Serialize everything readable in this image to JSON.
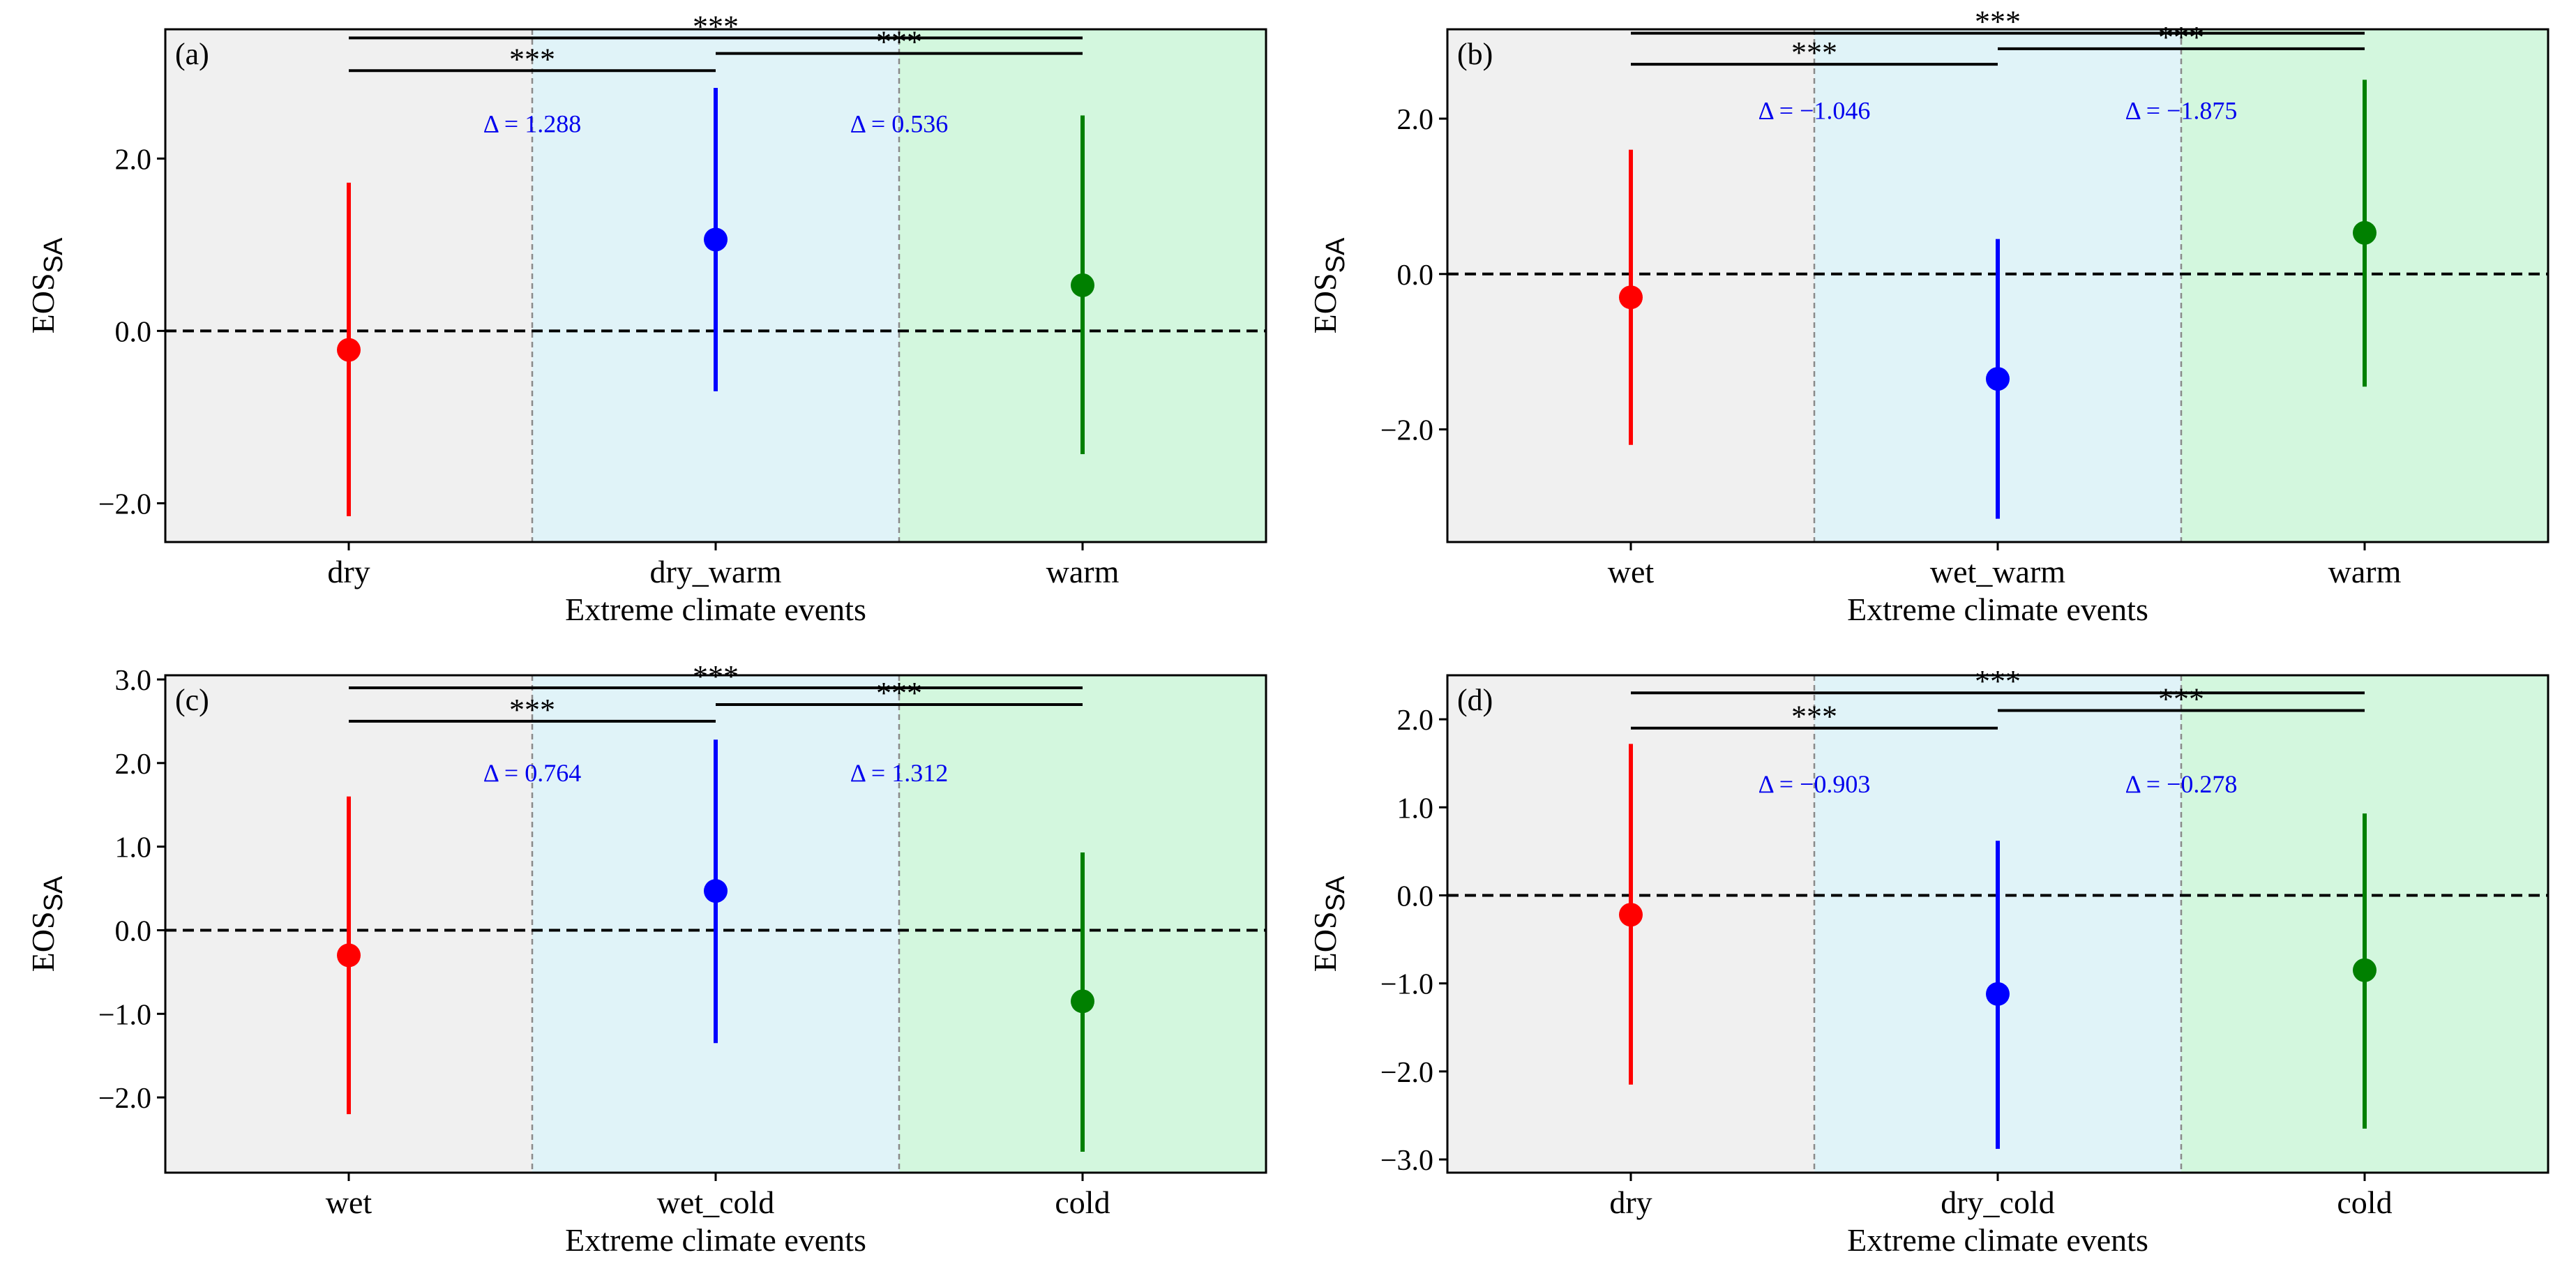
{
  "figure": {
    "colors": {
      "bg_left": "#f0f0f0",
      "bg_mid": "#e0f3f8",
      "bg_right": "#d3f7de",
      "zero_line": "#000000",
      "delta_text": "#0000ee",
      "series": [
        "#ff0000",
        "#0000ff",
        "#008000"
      ]
    }
  },
  "chart_data": [
    {
      "type": "scatter",
      "panel_label": "(a)",
      "categories": [
        "dry",
        "dry_warm",
        "warm"
      ],
      "values": [
        -0.22,
        1.06,
        0.53
      ],
      "lower": [
        -2.15,
        -0.7,
        -1.43
      ],
      "upper": [
        1.72,
        2.82,
        2.5
      ],
      "xlabel": "Extreme climate events",
      "ylabel": "EOS",
      "ylabel_sub": "SA",
      "yticks": [
        -2.0,
        0.0,
        2.0
      ],
      "yticklabels": [
        "−2.0",
        "0.0",
        "2.0"
      ],
      "ylim": [
        -2.45,
        3.5
      ],
      "significance": [
        {
          "from": 0,
          "to": 1,
          "label": "***",
          "y": 3.02
        },
        {
          "from": 1,
          "to": 2,
          "label": "***",
          "y": 3.22
        },
        {
          "from": 0,
          "to": 2,
          "label": "***",
          "y": 3.4
        }
      ],
      "deltas": [
        {
          "text": "Δ = 1.288",
          "between": [
            0,
            1
          ],
          "y": 2.42
        },
        {
          "text": "Δ = 0.536",
          "between": [
            1,
            2
          ],
          "y": 2.42
        }
      ],
      "zero_line": 0.0,
      "grid": false
    },
    {
      "type": "scatter",
      "panel_label": "(b)",
      "categories": [
        "wet",
        "wet_warm",
        "warm"
      ],
      "values": [
        -0.3,
        -1.35,
        0.53
      ],
      "lower": [
        -2.2,
        -3.15,
        -1.45
      ],
      "upper": [
        1.6,
        0.45,
        2.5
      ],
      "xlabel": "Extreme climate events",
      "ylabel": "EOS",
      "ylabel_sub": "SA",
      "yticks": [
        -2.0,
        0.0,
        2.0
      ],
      "yticklabels": [
        "−2.0",
        "0.0",
        "2.0"
      ],
      "ylim": [
        -3.45,
        3.15
      ],
      "significance": [
        {
          "from": 0,
          "to": 1,
          "label": "***",
          "y": 2.7
        },
        {
          "from": 1,
          "to": 2,
          "label": "***",
          "y": 2.9
        },
        {
          "from": 0,
          "to": 2,
          "label": "***",
          "y": 3.1
        }
      ],
      "deltas": [
        {
          "text": "Δ = −1.046",
          "between": [
            0,
            1
          ],
          "y": 2.12
        },
        {
          "text": "Δ = −1.875",
          "between": [
            1,
            2
          ],
          "y": 2.12
        }
      ],
      "zero_line": 0.0,
      "grid": false
    },
    {
      "type": "scatter",
      "panel_label": "(c)",
      "categories": [
        "wet",
        "wet_cold",
        "cold"
      ],
      "values": [
        -0.3,
        0.47,
        -0.85
      ],
      "lower": [
        -2.2,
        -1.35,
        -2.65
      ],
      "upper": [
        1.6,
        2.28,
        0.93
      ],
      "xlabel": "Extreme climate events",
      "ylabel": "EOS",
      "ylabel_sub": "SA",
      "yticks": [
        -2.0,
        -1.0,
        0.0,
        1.0,
        2.0,
        3.0
      ],
      "yticklabels": [
        "−2.0",
        "−1.0",
        "0.0",
        "1.0",
        "2.0",
        "3.0"
      ],
      "ylim": [
        -2.9,
        3.05
      ],
      "significance": [
        {
          "from": 0,
          "to": 1,
          "label": "***",
          "y": 2.5
        },
        {
          "from": 1,
          "to": 2,
          "label": "***",
          "y": 2.7
        },
        {
          "from": 0,
          "to": 2,
          "label": "***",
          "y": 2.9
        }
      ],
      "deltas": [
        {
          "text": "Δ = 0.764",
          "between": [
            0,
            1
          ],
          "y": 1.9
        },
        {
          "text": "Δ = 1.312",
          "between": [
            1,
            2
          ],
          "y": 1.9
        }
      ],
      "zero_line": 0.0,
      "grid": false
    },
    {
      "type": "scatter",
      "panel_label": "(d)",
      "categories": [
        "dry",
        "dry_cold",
        "cold"
      ],
      "values": [
        -0.22,
        -1.12,
        -0.85
      ],
      "lower": [
        -2.15,
        -2.88,
        -2.65
      ],
      "upper": [
        1.72,
        0.62,
        0.93
      ],
      "xlabel": "Extreme climate events",
      "ylabel": "EOS",
      "ylabel_sub": "SA",
      "yticks": [
        -3.0,
        -2.0,
        -1.0,
        0.0,
        1.0,
        2.0
      ],
      "yticklabels": [
        "−3.0",
        "−2.0",
        "−1.0",
        "0.0",
        "1.0",
        "2.0"
      ],
      "ylim": [
        -3.15,
        2.5
      ],
      "significance": [
        {
          "from": 0,
          "to": 1,
          "label": "***",
          "y": 1.9
        },
        {
          "from": 1,
          "to": 2,
          "label": "***",
          "y": 2.1
        },
        {
          "from": 0,
          "to": 2,
          "label": "***",
          "y": 2.3
        }
      ],
      "deltas": [
        {
          "text": "Δ = −0.903",
          "between": [
            0,
            1
          ],
          "y": 1.28
        },
        {
          "text": "Δ = −0.278",
          "between": [
            1,
            2
          ],
          "y": 1.28
        }
      ],
      "zero_line": 0.0,
      "grid": false
    }
  ]
}
